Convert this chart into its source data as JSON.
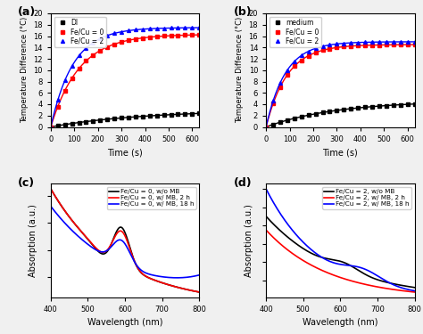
{
  "panel_labels": [
    "(a)",
    "(b)",
    "(c)",
    "(d)"
  ],
  "panel_a": {
    "legend": [
      "DI",
      "Fe/Cu = 0",
      "Fe/Cu = 2"
    ],
    "colors": [
      "black",
      "red",
      "blue"
    ],
    "markers": [
      "s",
      "s",
      "^"
    ],
    "xlabel": "Time (s)",
    "ylabel": "Temperature Difference (°C)",
    "xlim": [
      0,
      630
    ],
    "ylim": [
      0,
      20
    ],
    "yticks": [
      0,
      2,
      4,
      6,
      8,
      10,
      12,
      14,
      16,
      18,
      20
    ],
    "xticks": [
      0,
      100,
      200,
      300,
      400,
      500,
      600
    ]
  },
  "panel_b": {
    "legend": [
      "medium",
      "Fe/Cu = 0",
      "Fe/Cu = 2"
    ],
    "colors": [
      "black",
      "red",
      "blue"
    ],
    "markers": [
      "s",
      "s",
      "^"
    ],
    "xlabel": "Time (s)",
    "ylabel": "Temperature Difference (°C)",
    "xlim": [
      0,
      630
    ],
    "ylim": [
      0,
      20
    ],
    "yticks": [
      0,
      2,
      4,
      6,
      8,
      10,
      12,
      14,
      16,
      18,
      20
    ],
    "xticks": [
      0,
      100,
      200,
      300,
      400,
      500,
      600
    ]
  },
  "panel_c": {
    "legend": [
      "Fe/Cu = 0, w/o MB",
      "Fe/Cu = 0, w/ MB, 2 h",
      "Fe/Cu = 0, w/ MB, 18 h"
    ],
    "colors": [
      "black",
      "red",
      "blue"
    ],
    "xlabel": "Wavelength (nm)",
    "ylabel": "Absorption (a.u.)",
    "xlim": [
      400,
      800
    ],
    "xticks": [
      400,
      500,
      600,
      700,
      800
    ]
  },
  "panel_d": {
    "legend": [
      "Fe/Cu = 2, w/o MB",
      "Fe/Cu = 2, w/ MB, 2 h",
      "Fe/Cu = 2, w/ MB, 18 h"
    ],
    "colors": [
      "black",
      "red",
      "blue"
    ],
    "xlabel": "Wavelength (nm)",
    "ylabel": "Absorption (a.u.)",
    "xlim": [
      400,
      800
    ],
    "xticks": [
      400,
      500,
      600,
      700,
      800
    ]
  },
  "figure_bg": "#f0f0f0"
}
